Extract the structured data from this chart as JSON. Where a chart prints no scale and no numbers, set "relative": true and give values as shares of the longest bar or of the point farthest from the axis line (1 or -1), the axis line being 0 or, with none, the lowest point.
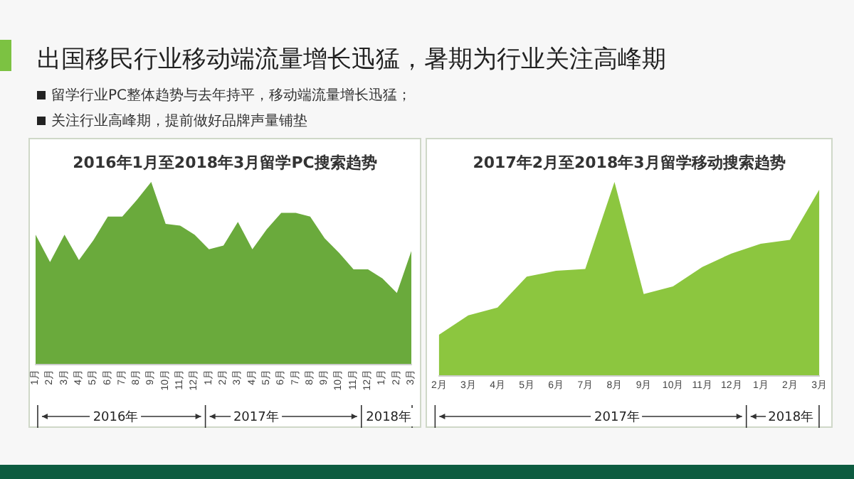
{
  "chart_data": [
    {
      "type": "other",
      "title": "出国移民行业移动端流量增长迅猛，暑期为行业关注高峰期",
      "annotations": [
        "留学行业PC整体趋势与去年持平，移动端流量增长迅猛；",
        "关注行业高峰期，提前做好品牌声量铺垫"
      ]
    },
    {
      "type": "area",
      "title": "2016年1月至2018年3月留学PC搜索趋势",
      "relative": true,
      "categories": [
        "1月",
        "2月",
        "3月",
        "4月",
        "5月",
        "6月",
        "7月",
        "8月",
        "9月",
        "10月",
        "11月",
        "12月",
        "1月",
        "2月",
        "3月",
        "4月",
        "5月",
        "6月",
        "7月",
        "8月",
        "9月",
        "10月",
        "11月",
        "12月",
        "1月",
        "2月",
        "3月"
      ],
      "series": [
        {
          "color": "#6aaa3c",
          "values": [
            0.71,
            0.56,
            0.71,
            0.57,
            0.68,
            0.81,
            0.81,
            0.9,
            1,
            0.77,
            0.76,
            0.71,
            0.63,
            0.65,
            0.78,
            0.63,
            0.74,
            0.83,
            0.83,
            0.81,
            0.69,
            0.61,
            0.52,
            0.52,
            0.47,
            0.39,
            0.62
          ]
        }
      ],
      "annotations": [
        "2016年",
        "2017年",
        "2018年"
      ]
    },
    {
      "type": "area",
      "title": "2017年2月至2018年3月留学移动搜索趋势",
      "relative": true,
      "categories": [
        "2月",
        "3月",
        "4月",
        "5月",
        "6月",
        "7月",
        "8月",
        "9月",
        "10月",
        "11月",
        "12月",
        "1月",
        "2月",
        "3月"
      ],
      "series": [
        {
          "color": "#8cc63f",
          "values": [
            0.21,
            0.31,
            0.35,
            0.51,
            0.54,
            0.55,
            1,
            0.42,
            0.46,
            0.56,
            0.63,
            0.68,
            0.7,
            0.96
          ]
        }
      ],
      "annotations": [
        "2017年",
        "2018年"
      ]
    }
  ]
}
